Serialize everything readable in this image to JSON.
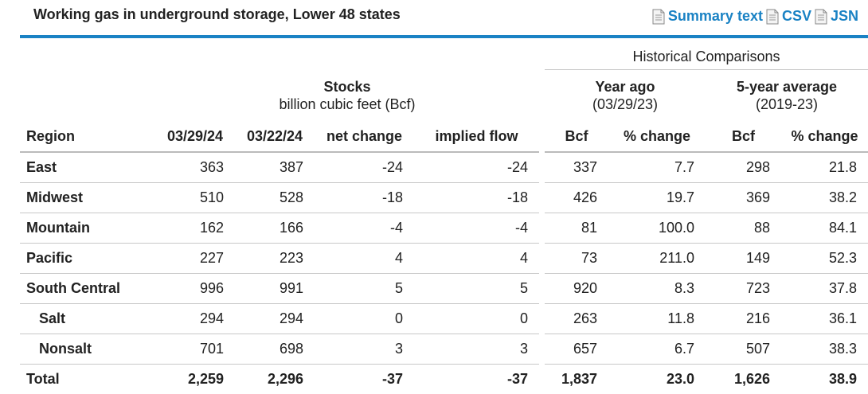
{
  "header": {
    "title": "Working gas in underground storage, Lower 48 states",
    "links": [
      {
        "label": "Summary text",
        "icon": "document-icon"
      },
      {
        "label": "CSV",
        "icon": "document-icon"
      },
      {
        "label": "JSN",
        "icon": "document-icon"
      }
    ]
  },
  "table": {
    "historical_title": "Historical Comparisons",
    "stocks_title": "Stocks",
    "stocks_subtitle": "billion cubic feet (Bcf)",
    "year_ago_title": "Year ago",
    "year_ago_subtitle": "(03/29/23)",
    "five_year_title": "5-year average",
    "five_year_subtitle": "(2019-23)",
    "columns": [
      "Region",
      "03/29/24",
      "03/22/24",
      "net change",
      "implied flow",
      "Bcf",
      "% change",
      "Bcf",
      "% change"
    ],
    "rows": [
      {
        "region": "East",
        "sub": false,
        "values": [
          "363",
          "387",
          "-24",
          "-24",
          "337",
          "7.7",
          "298",
          "21.8"
        ]
      },
      {
        "region": "Midwest",
        "sub": false,
        "values": [
          "510",
          "528",
          "-18",
          "-18",
          "426",
          "19.7",
          "369",
          "38.2"
        ]
      },
      {
        "region": "Mountain",
        "sub": false,
        "values": [
          "162",
          "166",
          "-4",
          "-4",
          "81",
          "100.0",
          "88",
          "84.1"
        ]
      },
      {
        "region": "Pacific",
        "sub": false,
        "values": [
          "227",
          "223",
          "4",
          "4",
          "73",
          "211.0",
          "149",
          "52.3"
        ]
      },
      {
        "region": "South Central",
        "sub": false,
        "values": [
          "996",
          "991",
          "5",
          "5",
          "920",
          "8.3",
          "723",
          "37.8"
        ]
      },
      {
        "region": "Salt",
        "sub": true,
        "values": [
          "294",
          "294",
          "0",
          "0",
          "263",
          "11.8",
          "216",
          "36.1"
        ]
      },
      {
        "region": "Nonsalt",
        "sub": true,
        "values": [
          "701",
          "698",
          "3",
          "3",
          "657",
          "6.7",
          "507",
          "38.3"
        ]
      }
    ],
    "total": {
      "region": "Total",
      "values": [
        "2,259",
        "2,296",
        "-37",
        "-37",
        "1,837",
        "23.0",
        "1,626",
        "38.9"
      ]
    }
  },
  "colors": {
    "accent": "#1a82c4",
    "text": "#222222",
    "rule": "#c8c8c8"
  }
}
